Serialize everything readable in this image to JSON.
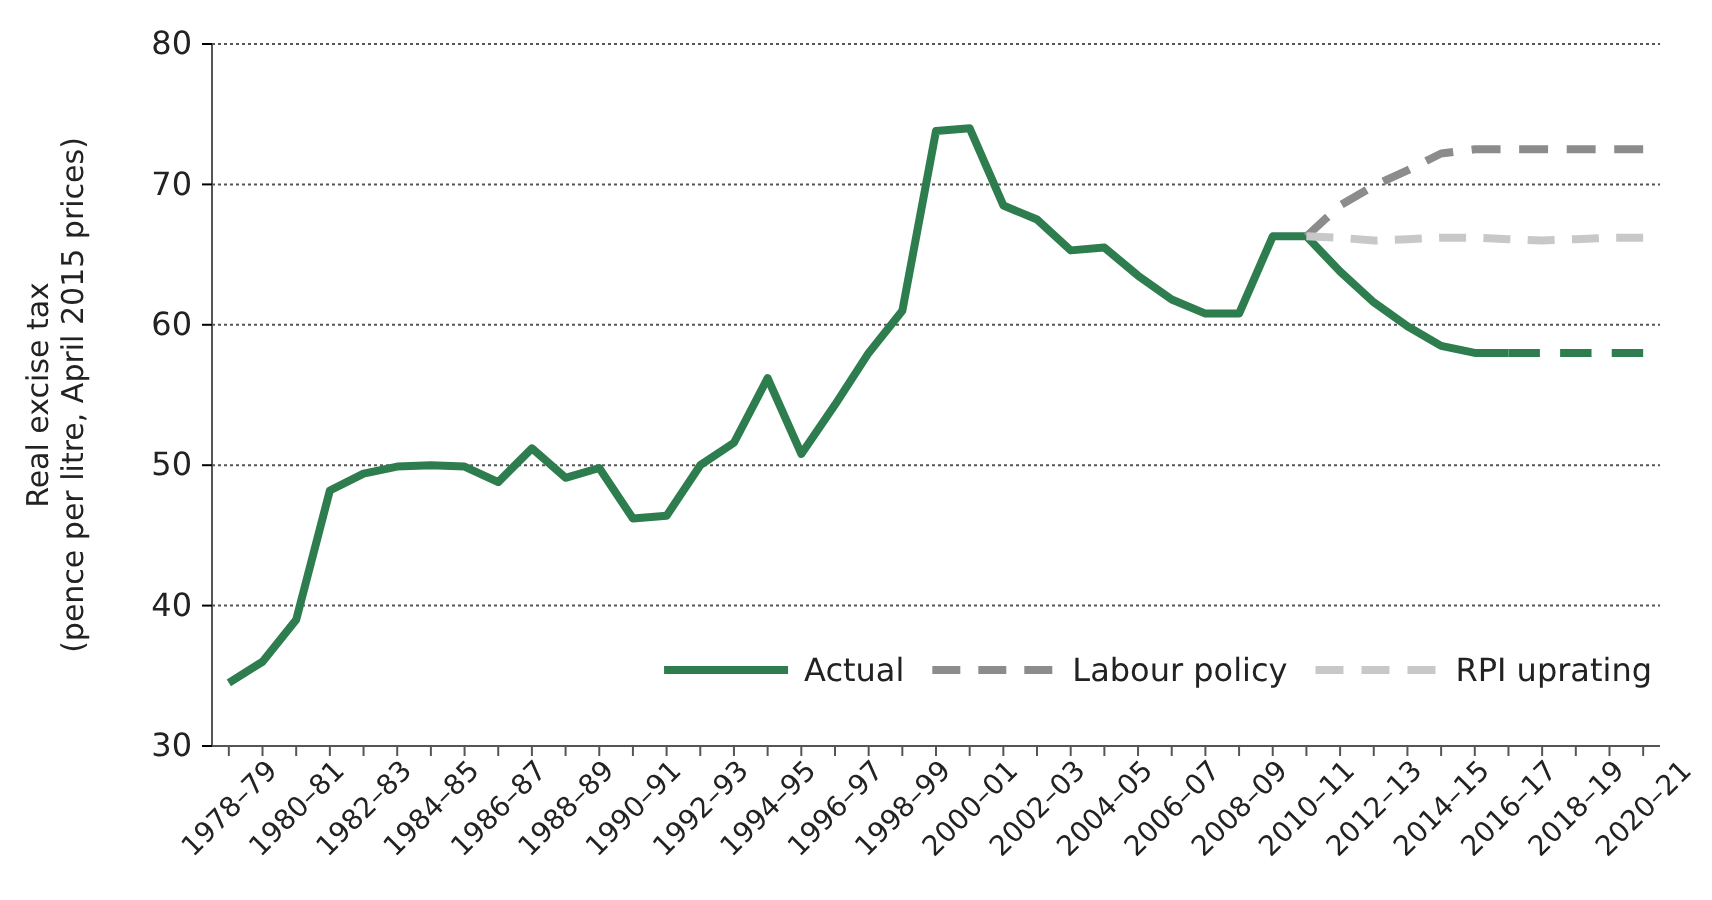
{
  "chart_data": {
    "type": "line",
    "ylabel": "Real excise tax\n(pence per litre, April 2015 prices)",
    "categories": [
      "1978–79",
      null,
      "1980–81",
      null,
      "1982–83",
      null,
      "1984–85",
      null,
      "1986–87",
      null,
      "1988–89",
      null,
      "1990–91",
      null,
      "1992–93",
      null,
      "1994–95",
      null,
      "1996–97",
      null,
      "1998–99",
      null,
      "2000–01",
      null,
      "2002–03",
      null,
      "2004–05",
      null,
      "2006–07",
      null,
      "2008–09",
      null,
      "2010–11",
      null,
      "2012–13",
      null,
      "2014–15",
      null,
      "2016–17",
      null,
      "2018–19",
      null,
      "2020–21"
    ],
    "series": [
      {
        "name": "Actual",
        "color": "#2e7d4f",
        "line_style": "solid",
        "values": [
          34.5,
          36,
          39,
          48.2,
          49.4,
          49.9,
          50,
          49.9,
          48.8,
          51.2,
          49.1,
          49.8,
          46.2,
          46.4,
          50,
          51.6,
          56.2,
          50.8,
          54.3,
          58,
          61,
          73.8,
          74,
          68.5,
          67.5,
          65.3,
          65.5,
          63.5,
          61.8,
          60.8,
          60.8,
          66.3,
          66.3,
          63.8,
          61.6,
          59.9,
          58.5,
          58,
          58,
          null,
          null,
          null,
          null
        ]
      },
      {
        "color": "#2e7d4f",
        "line_style": "dashed",
        "values": [
          null,
          null,
          null,
          null,
          null,
          null,
          null,
          null,
          null,
          null,
          null,
          null,
          null,
          null,
          null,
          null,
          null,
          null,
          null,
          null,
          null,
          null,
          null,
          null,
          null,
          null,
          null,
          null,
          null,
          null,
          null,
          null,
          null,
          null,
          null,
          null,
          null,
          null,
          58,
          58,
          58,
          58,
          58
        ]
      },
      {
        "name": "Labour policy",
        "color": "#8c8c8c",
        "line_style": "dashed",
        "values": [
          null,
          null,
          null,
          null,
          null,
          null,
          null,
          null,
          null,
          null,
          null,
          null,
          null,
          null,
          null,
          null,
          null,
          null,
          null,
          null,
          null,
          null,
          null,
          null,
          null,
          null,
          null,
          null,
          null,
          null,
          null,
          null,
          66.3,
          68.5,
          69.9,
          71,
          72.2,
          72.5,
          72.5,
          72.5,
          72.5,
          72.5,
          72.5
        ]
      },
      {
        "name": "RPI uprating",
        "color": "#c8c8c8",
        "line_style": "dashed",
        "values": [
          null,
          null,
          null,
          null,
          null,
          null,
          null,
          null,
          null,
          null,
          null,
          null,
          null,
          null,
          null,
          null,
          null,
          null,
          null,
          null,
          null,
          null,
          null,
          null,
          null,
          null,
          null,
          null,
          null,
          null,
          null,
          null,
          66.3,
          66.2,
          66,
          66.1,
          66.2,
          66.2,
          66.1,
          66,
          66.1,
          66.2,
          66.2
        ]
      }
    ],
    "ylim": [
      30,
      80
    ],
    "yticks": [
      30,
      40,
      50,
      60,
      70,
      80
    ],
    "grid": "y",
    "legend": "bottom right"
  }
}
